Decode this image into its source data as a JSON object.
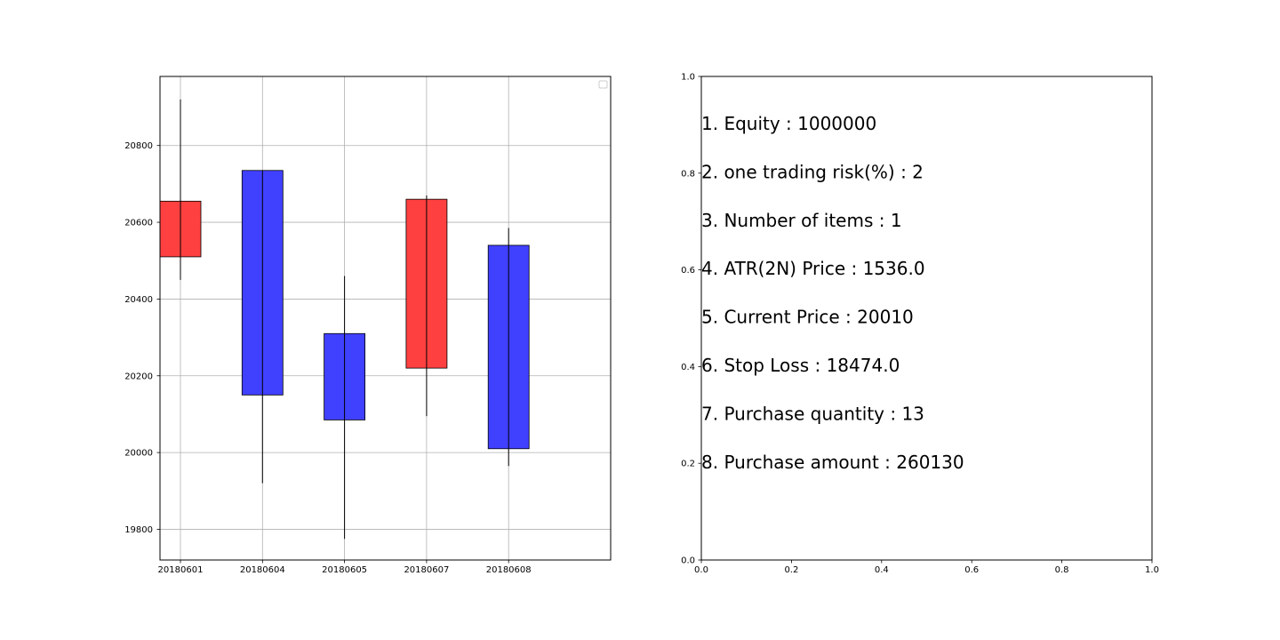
{
  "chart_data": [
    {
      "type": "candlestick",
      "categories": [
        "20180601",
        "20180604",
        "20180605",
        "20180607",
        "20180608"
      ],
      "candles": [
        {
          "open": 20510,
          "close": 20655,
          "high": 20920,
          "low": 20450,
          "color": "#ff4040"
        },
        {
          "open": 20735,
          "close": 20150,
          "high": 20735,
          "low": 19920,
          "color": "#4040ff"
        },
        {
          "open": 20310,
          "close": 20085,
          "high": 20460,
          "low": 19775,
          "color": "#4040ff"
        },
        {
          "open": 20220,
          "close": 20660,
          "high": 20670,
          "low": 20095,
          "color": "#ff4040"
        },
        {
          "open": 20540,
          "close": 20010,
          "high": 20585,
          "low": 19965,
          "color": "#4040ff"
        }
      ],
      "ylim": [
        19720,
        20980
      ],
      "yticks": [
        19800,
        20000,
        20200,
        20400,
        20600,
        20800
      ],
      "grid": true,
      "legend": "top-right (empty)"
    },
    {
      "type": "text",
      "xlim": [
        0,
        1
      ],
      "ylim": [
        0,
        1
      ],
      "xticks": [
        "0.0",
        "0.2",
        "0.4",
        "0.6",
        "0.8",
        "1.0"
      ],
      "yticks": [
        "0.0",
        "0.2",
        "0.4",
        "0.6",
        "0.8",
        "1.0"
      ],
      "grid": false,
      "lines": [
        "1. Equity : 1000000",
        "2. one trading risk(%) : 2",
        "3. Number of items : 1",
        "4. ATR(2N) Price : 1536.0",
        "5. Current Price : 20010",
        "6. Stop Loss : 18474.0",
        "7. Purchase quantity : 13",
        "8. Purchase amount : 260130"
      ]
    }
  ]
}
